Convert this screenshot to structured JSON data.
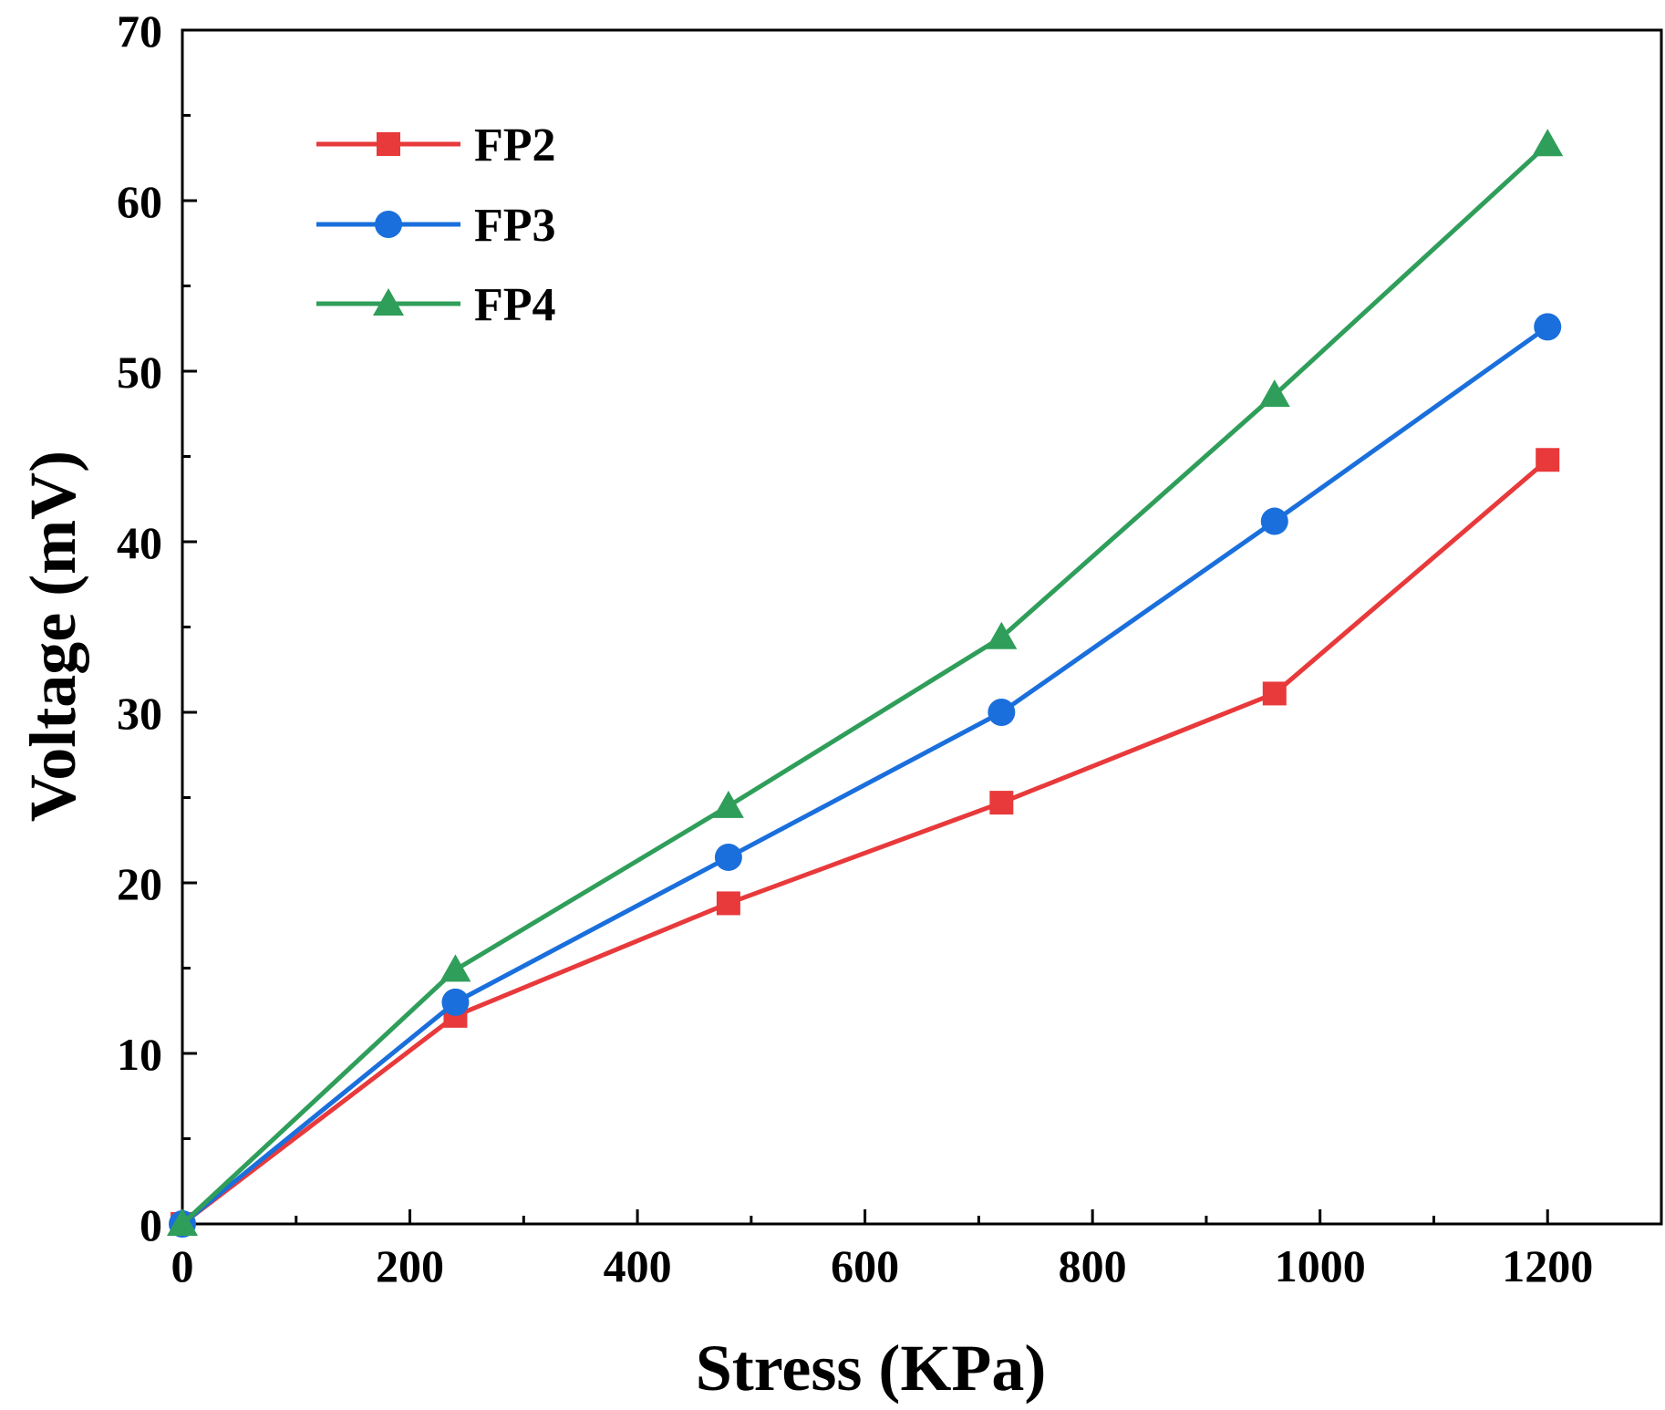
{
  "chart_data": {
    "type": "line",
    "xlabel": "Stress (KPa)",
    "ylabel": "Voltage (mV)",
    "xlim": [
      0,
      1300
    ],
    "ylim": [
      0,
      70
    ],
    "xticks": [
      0,
      200,
      400,
      600,
      800,
      1000,
      1200
    ],
    "xtick_labels": [
      "0",
      "200",
      "400",
      "600",
      "800",
      "1000",
      "1200"
    ],
    "yticks": [
      0,
      10,
      20,
      30,
      40,
      50,
      60,
      70
    ],
    "ytick_labels": [
      "0",
      "10",
      "20",
      "30",
      "40",
      "50",
      "60",
      "70"
    ],
    "legend_position": "top-left",
    "x": [
      0,
      240,
      480,
      720,
      960,
      1200
    ],
    "series": [
      {
        "name": "FP2",
        "marker": "square",
        "color": "#e8393b",
        "values": [
          0,
          12.2,
          18.8,
          24.7,
          31.1,
          44.8
        ]
      },
      {
        "name": "FP3",
        "marker": "circle",
        "color": "#1a6fdc",
        "values": [
          0,
          13.0,
          21.5,
          30.0,
          41.2,
          52.6
        ]
      },
      {
        "name": "FP4",
        "marker": "triangle",
        "color": "#2f9e5a",
        "values": [
          0,
          14.9,
          24.5,
          34.4,
          48.6,
          63.3
        ]
      }
    ]
  }
}
